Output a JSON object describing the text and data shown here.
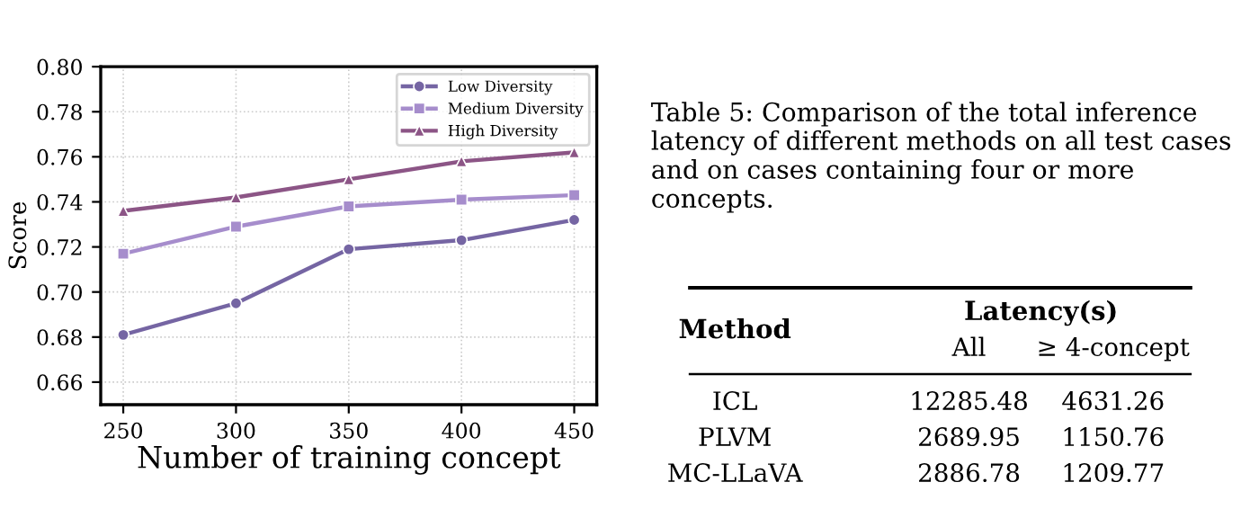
{
  "chart_data": [
    {
      "type": "line",
      "xlabel": "Number of training concept",
      "ylabel": "Score",
      "x": [
        250,
        300,
        350,
        400,
        450
      ],
      "series": [
        {
          "name": "Low Diversity",
          "color": "#7565a3",
          "marker": "circle",
          "values": [
            0.681,
            0.695,
            0.719,
            0.723,
            0.732
          ]
        },
        {
          "name": "Medium Diversity",
          "color": "#a68dcc",
          "marker": "square",
          "values": [
            0.717,
            0.729,
            0.738,
            0.741,
            0.743
          ]
        },
        {
          "name": "High Diversity",
          "color": "#8c5586",
          "marker": "triangle",
          "values": [
            0.736,
            0.742,
            0.75,
            0.758,
            0.762
          ]
        }
      ],
      "xlim": [
        240,
        460
      ],
      "ylim": [
        0.65,
        0.8
      ],
      "xticks": [
        250,
        300,
        350,
        400,
        450
      ],
      "yticks": [
        {
          "value": 0.66,
          "label": "0.66"
        },
        {
          "value": 0.68,
          "label": "0.68"
        },
        {
          "value": 0.7,
          "label": "0.70"
        },
        {
          "value": 0.72,
          "label": "0.72"
        },
        {
          "value": 0.74,
          "label": "0.74"
        },
        {
          "value": 0.76,
          "label": "0.76"
        },
        {
          "value": 0.78,
          "label": "0.78"
        },
        {
          "value": 0.8,
          "label": "0.80"
        }
      ],
      "grid": true,
      "legend": "top right",
      "line_style": "solid"
    },
    {
      "type": "other",
      "title": "Latency(s)",
      "xlabel": "Method",
      "annotations": [
        "Table 5: Comparison of the total inference latency of different methods on all test cases and on cases containing four or more concepts."
      ],
      "categories": [
        "ICL",
        "PLVM",
        "MC-LLaVA"
      ],
      "series": [
        {
          "name": "All",
          "color": "#000000",
          "values": [
            12285.48,
            2689.95,
            2886.78
          ]
        },
        {
          "name": "≥ 4-concept",
          "color": "#000000",
          "values": [
            4631.26,
            1150.76,
            1209.77
          ]
        }
      ],
      "data_labels": true
    }
  ]
}
